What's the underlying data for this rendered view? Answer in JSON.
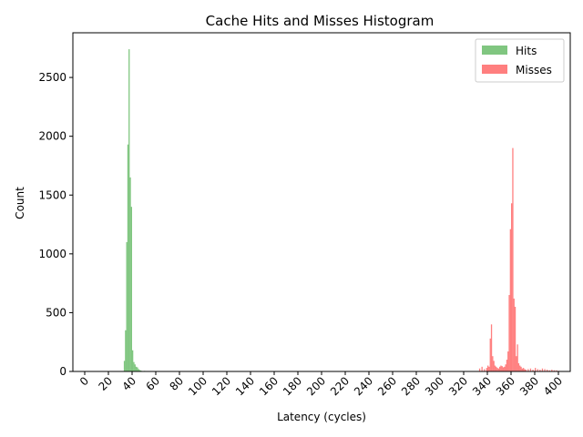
{
  "chart_data": {
    "type": "bar",
    "title": "Cache Hits and Misses Histogram",
    "xlabel": "Latency (cycles)",
    "ylabel": "Count",
    "xlim": [
      -10,
      410
    ],
    "ylim": [
      0,
      2880
    ],
    "x_ticks": [
      0,
      20,
      40,
      60,
      80,
      100,
      120,
      140,
      160,
      180,
      200,
      220,
      240,
      260,
      280,
      300,
      320,
      340,
      360,
      380,
      400
    ],
    "y_ticks": [
      0,
      500,
      1000,
      1500,
      2000,
      2500
    ],
    "bin_width": 1,
    "grid": false,
    "legend_position": "top-right",
    "series": [
      {
        "name": "Hits",
        "color": "#2ca02c",
        "alpha": 0.6,
        "x": [
          33,
          34,
          35,
          36,
          37,
          38,
          39,
          40,
          41,
          42,
          43,
          44,
          45,
          46,
          47,
          50,
          55,
          60
        ],
        "values": [
          90,
          350,
          1100,
          1930,
          2740,
          1650,
          1400,
          180,
          80,
          60,
          40,
          35,
          20,
          12,
          8,
          5,
          3,
          2
        ]
      },
      {
        "name": "Misses",
        "color": "#ff0000",
        "alpha": 0.5,
        "x": [
          333,
          335,
          337,
          339,
          340,
          341,
          342,
          343,
          344,
          345,
          346,
          347,
          348,
          349,
          350,
          351,
          352,
          353,
          354,
          355,
          356,
          357,
          358,
          359,
          360,
          361,
          362,
          363,
          364,
          365,
          366,
          367,
          368,
          369,
          370,
          371,
          372,
          374,
          376,
          378,
          380,
          382,
          384,
          386,
          388,
          390,
          392,
          394,
          396,
          398,
          400
        ],
        "values": [
          25,
          40,
          20,
          30,
          50,
          40,
          280,
          400,
          130,
          90,
          50,
          40,
          30,
          25,
          40,
          50,
          45,
          35,
          40,
          60,
          100,
          170,
          650,
          1210,
          1430,
          1900,
          620,
          550,
          130,
          230,
          70,
          50,
          40,
          25,
          30,
          20,
          15,
          20,
          25,
          15,
          30,
          20,
          15,
          25,
          20,
          15,
          10,
          15,
          10,
          10,
          5
        ]
      }
    ]
  }
}
